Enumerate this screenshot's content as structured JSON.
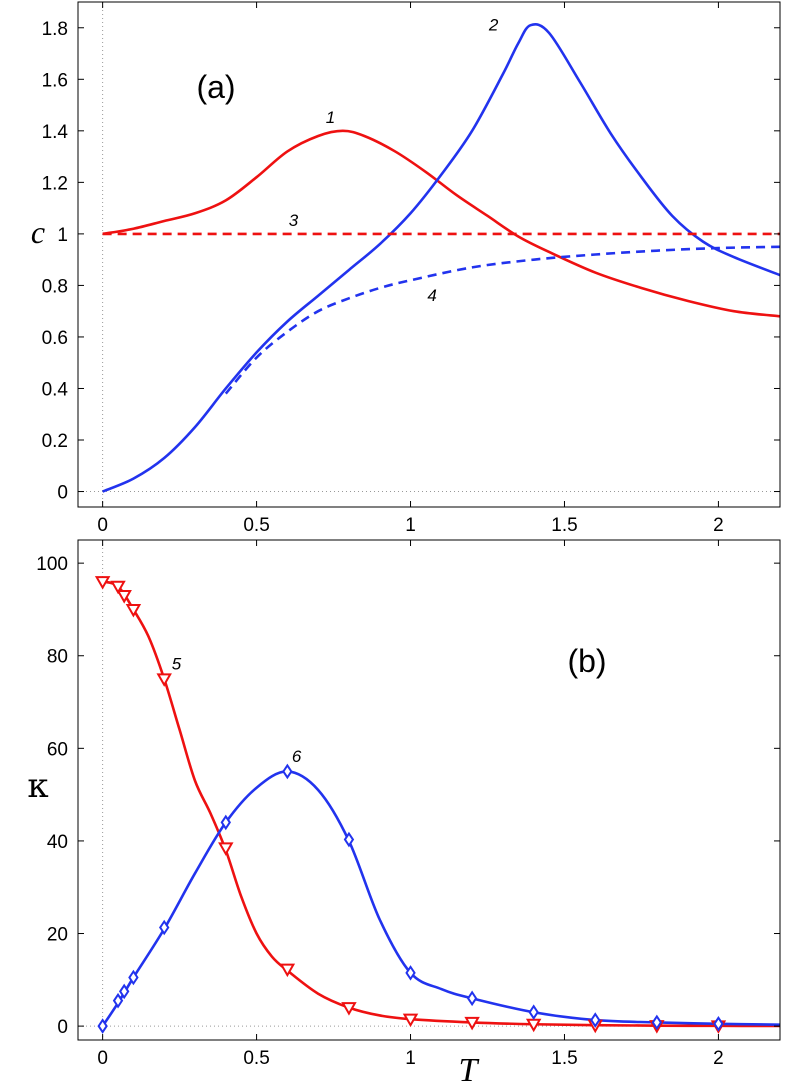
{
  "chart_data": [
    {
      "type": "line",
      "panel_label": "(a)",
      "ylabel": "c",
      "xlim": [
        -0.08,
        2.2
      ],
      "ylim": [
        -0.06,
        1.9
      ],
      "xticks": [
        "0",
        "0.5",
        "1",
        "1.5",
        "2"
      ],
      "xtick_values": [
        0,
        0.5,
        1,
        1.5,
        2
      ],
      "yticks": [
        "0",
        "0.2",
        "0.4",
        "0.6",
        "0.8",
        "1",
        "1.2",
        "1.4",
        "1.6",
        "1.8"
      ],
      "ytick_values": [
        0,
        0.2,
        0.4,
        0.6,
        0.8,
        1,
        1.2,
        1.4,
        1.6,
        1.8
      ],
      "series": [
        {
          "name": "1",
          "color": "#ee1111",
          "style": "solid",
          "label_at": [
            0.74,
            1.43
          ],
          "x": [
            0,
            0.1,
            0.2,
            0.3,
            0.4,
            0.5,
            0.6,
            0.7,
            0.78,
            0.85,
            0.95,
            1.05,
            1.15,
            1.25,
            1.35,
            1.45,
            1.6,
            1.75,
            1.9,
            2.05,
            2.2
          ],
          "y": [
            1.0,
            1.02,
            1.05,
            1.08,
            1.13,
            1.22,
            1.32,
            1.38,
            1.4,
            1.38,
            1.32,
            1.24,
            1.15,
            1.07,
            0.99,
            0.93,
            0.85,
            0.79,
            0.74,
            0.7,
            0.68
          ]
        },
        {
          "name": "2",
          "color": "#2233ee",
          "style": "solid",
          "label_at": [
            1.27,
            1.79
          ],
          "x": [
            0,
            0.1,
            0.2,
            0.3,
            0.4,
            0.5,
            0.6,
            0.7,
            0.8,
            0.9,
            1.0,
            1.1,
            1.2,
            1.3,
            1.35,
            1.39,
            1.45,
            1.55,
            1.65,
            1.75,
            1.85,
            1.95,
            2.05,
            2.2
          ],
          "y": [
            0.0,
            0.05,
            0.13,
            0.25,
            0.4,
            0.54,
            0.66,
            0.76,
            0.86,
            0.96,
            1.08,
            1.23,
            1.4,
            1.62,
            1.74,
            1.81,
            1.78,
            1.59,
            1.39,
            1.22,
            1.07,
            0.97,
            0.91,
            0.84
          ]
        },
        {
          "name": "3",
          "color": "#ee1111",
          "style": "dashed",
          "label_at": [
            0.62,
            1.03
          ],
          "x": [
            0,
            2.2
          ],
          "y": [
            1.0,
            1.0
          ]
        },
        {
          "name": "4",
          "color": "#2233ee",
          "style": "dashed",
          "label_at": [
            1.07,
            0.74
          ],
          "x": [
            0.4,
            0.5,
            0.6,
            0.7,
            0.8,
            0.9,
            1.0,
            1.2,
            1.4,
            1.6,
            1.8,
            2.0,
            2.2
          ],
          "y": [
            0.38,
            0.52,
            0.62,
            0.7,
            0.75,
            0.79,
            0.82,
            0.87,
            0.9,
            0.92,
            0.935,
            0.945,
            0.95
          ]
        }
      ]
    },
    {
      "type": "line",
      "panel_label": "(b)",
      "ylabel": "κ",
      "xlabel": "T",
      "xlim": [
        -0.08,
        2.2
      ],
      "ylim": [
        -3,
        105
      ],
      "xticks": [
        "0",
        "0.5",
        "1",
        "1.5",
        "2"
      ],
      "xtick_values": [
        0,
        0.5,
        1,
        1.5,
        2
      ],
      "yticks": [
        "0",
        "20",
        "40",
        "60",
        "80",
        "100"
      ],
      "ytick_values": [
        0,
        20,
        40,
        60,
        80,
        100
      ],
      "series": [
        {
          "name": "5",
          "color": "#ee1111",
          "marker": "triangle-down",
          "label_at": [
            0.24,
            77
          ],
          "x": [
            0,
            0.05,
            0.1,
            0.15,
            0.2,
            0.25,
            0.3,
            0.35,
            0.4,
            0.45,
            0.5,
            0.55,
            0.6,
            0.7,
            0.8,
            0.9,
            1.0,
            1.2,
            1.4,
            1.6,
            1.8,
            2.0,
            2.2
          ],
          "y": [
            96,
            95,
            90,
            84,
            75,
            64,
            53,
            46,
            38,
            28,
            20,
            15,
            12,
            7,
            4,
            2.3,
            1.5,
            0.8,
            0.4,
            0.2,
            0.1,
            0.05,
            0.03
          ],
          "markers_x": [
            0,
            0.05,
            0.07,
            0.1,
            0.2,
            0.4,
            0.6,
            0.8,
            1.0,
            1.2,
            1.4,
            1.6,
            1.8,
            2.0
          ],
          "markers_y": [
            96,
            95,
            93,
            90,
            75,
            38.5,
            12.3,
            4,
            1.5,
            0.8,
            0.4,
            0.2,
            0.1,
            0.05
          ]
        },
        {
          "name": "6",
          "color": "#2233ee",
          "marker": "diamond",
          "label_at": [
            0.63,
            57
          ],
          "x": [
            0,
            0.05,
            0.1,
            0.2,
            0.3,
            0.4,
            0.5,
            0.6,
            0.7,
            0.8,
            0.9,
            1.0,
            1.1,
            1.2,
            1.4,
            1.6,
            1.8,
            2.0,
            2.2
          ],
          "y": [
            0,
            5,
            10.5,
            21,
            33,
            44,
            51.5,
            55,
            51,
            40,
            23,
            11.5,
            8,
            6,
            3,
            1.3,
            0.8,
            0.5,
            0.3
          ],
          "markers_x": [
            0,
            0.05,
            0.07,
            0.1,
            0.2,
            0.4,
            0.6,
            0.8,
            1.0,
            1.2,
            1.4,
            1.6,
            1.8,
            2.0
          ],
          "markers_y": [
            0,
            5.5,
            7.5,
            10.5,
            21.3,
            44,
            55,
            40.3,
            11.5,
            6,
            3,
            1.3,
            0.8,
            0.5
          ]
        }
      ]
    }
  ]
}
